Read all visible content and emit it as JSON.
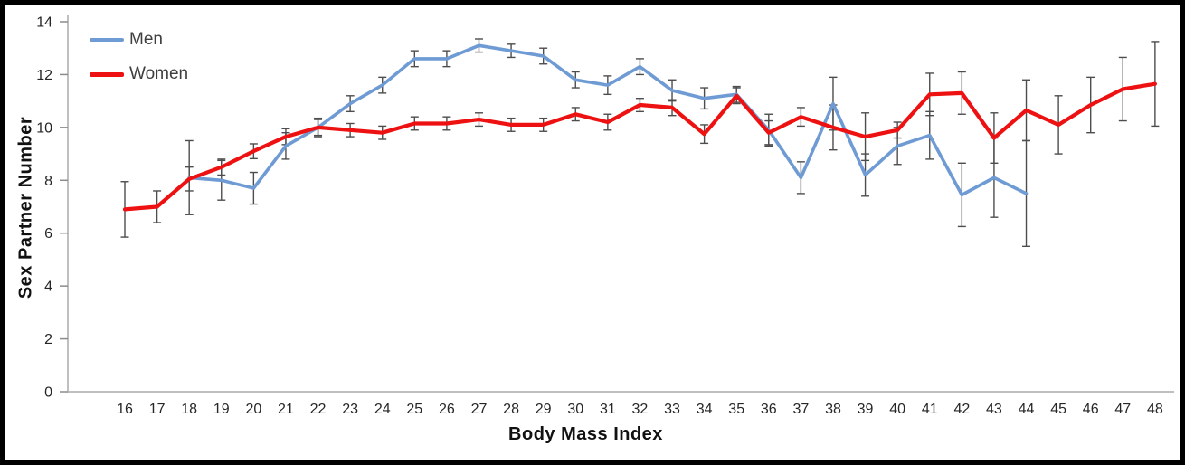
{
  "figure": {
    "background": "#ffffff",
    "frame_border_color": "#000000"
  },
  "chart_data": {
    "type": "line",
    "title": "",
    "xlabel": "Body Mass Index",
    "ylabel": "Sex Partner Number",
    "x_ticks": [
      16,
      17,
      18,
      19,
      20,
      21,
      22,
      23,
      24,
      25,
      26,
      27,
      28,
      29,
      30,
      31,
      32,
      33,
      34,
      35,
      36,
      37,
      38,
      39,
      40,
      41,
      42,
      43,
      44,
      45,
      46,
      47,
      48
    ],
    "y_ticks": [
      0,
      2,
      4,
      6,
      8,
      10,
      12,
      14
    ],
    "ylim": [
      0,
      14
    ],
    "xlim": [
      16,
      48
    ],
    "grid": false,
    "legend_position": "top-left",
    "colors": {
      "axis": "#bfbfbf",
      "tick_mark": "#8c8c8c",
      "error_bar": "#4d4d4d"
    },
    "series": [
      {
        "name": "Men",
        "color": "#6f9bd4",
        "x": [
          18,
          19,
          20,
          21,
          22,
          23,
          24,
          25,
          26,
          27,
          28,
          29,
          30,
          31,
          32,
          33,
          34,
          35,
          36,
          37,
          38,
          39,
          40,
          41,
          42,
          43,
          44
        ],
        "values": [
          8.1,
          8.0,
          7.7,
          9.3,
          10.0,
          10.9,
          11.6,
          12.6,
          12.6,
          13.1,
          12.9,
          12.7,
          11.8,
          11.6,
          12.3,
          11.4,
          11.1,
          11.25,
          9.9,
          8.1,
          10.9,
          8.2,
          9.3,
          9.7,
          7.45,
          8.1,
          7.5
        ],
        "errors": [
          1.4,
          0.75,
          0.6,
          0.5,
          0.35,
          0.3,
          0.3,
          0.3,
          0.3,
          0.25,
          0.25,
          0.3,
          0.3,
          0.35,
          0.3,
          0.4,
          0.4,
          0.3,
          0.6,
          0.6,
          1.0,
          0.8,
          0.7,
          0.9,
          1.2,
          1.5,
          2.0
        ]
      },
      {
        "name": "Women",
        "color": "#ee1111",
        "x": [
          16,
          17,
          18,
          19,
          20,
          21,
          22,
          23,
          24,
          25,
          26,
          27,
          28,
          29,
          30,
          31,
          32,
          33,
          34,
          35,
          36,
          37,
          38,
          39,
          40,
          41,
          42,
          43,
          44,
          45,
          46,
          47,
          48
        ],
        "values": [
          6.9,
          7.0,
          8.05,
          8.5,
          9.1,
          9.65,
          10.0,
          9.9,
          9.8,
          10.15,
          10.15,
          10.3,
          10.1,
          10.1,
          10.5,
          10.2,
          10.85,
          10.75,
          9.75,
          11.2,
          9.8,
          10.4,
          10.0,
          9.65,
          9.9,
          11.25,
          11.3,
          9.6,
          10.65,
          10.1,
          10.85,
          11.45,
          11.65
        ],
        "errors": [
          1.05,
          0.6,
          0.45,
          0.3,
          0.28,
          0.3,
          0.3,
          0.25,
          0.25,
          0.25,
          0.25,
          0.25,
          0.25,
          0.25,
          0.25,
          0.3,
          0.25,
          0.3,
          0.35,
          0.3,
          0.45,
          0.35,
          0.85,
          0.9,
          0.3,
          0.8,
          0.8,
          0.95,
          1.15,
          1.1,
          1.05,
          1.2,
          1.6
        ]
      }
    ]
  }
}
